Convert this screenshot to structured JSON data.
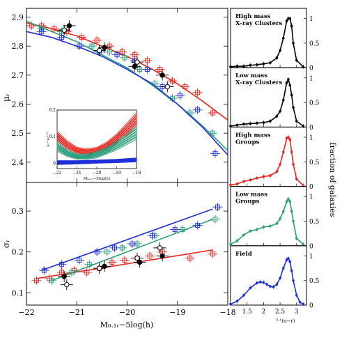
{
  "figure": {
    "colors": {
      "red": "#e8251e",
      "green": "#2a9d7a",
      "blue": "#1f2fd8",
      "black": "#000000"
    },
    "left_xlabel": "M₀.₁ᵣ−5log(h)",
    "right_xlabel": "⁰·¹(u−r)",
    "right_ylabel": "fraction of galaxies",
    "inset_ylabel": "μᵣ−μᵣᶠᶦᵉˡᵈ",
    "inset_xlabel": "M₀.₁ᵣ−5log(h)"
  },
  "chart_data": [
    {
      "type": "line",
      "id": "mu",
      "ylabel": "μᵣ",
      "xlim": [
        -22,
        -18
      ],
      "ylim": [
        2.33,
        2.93
      ],
      "yticks": [
        2.4,
        2.5,
        2.6,
        2.7,
        2.8,
        2.9
      ],
      "xticks": [
        -22,
        -21,
        -20,
        -19,
        -18
      ],
      "grid": false,
      "series": [
        {
          "color": "red",
          "curve": [
            [
              -22,
              2.88
            ],
            [
              -21.5,
              2.86
            ],
            [
              -21,
              2.835
            ],
            [
              -20.5,
              2.8
            ],
            [
              -20,
              2.765
            ],
            [
              -19.5,
              2.72
            ],
            [
              -19,
              2.67
            ],
            [
              -18.5,
              2.61
            ],
            [
              -18,
              2.545
            ]
          ],
          "points": [
            [
              -21.9,
              2.87
            ],
            [
              -21.7,
              2.87
            ],
            [
              -21.45,
              2.86
            ],
            [
              -21.2,
              2.85
            ],
            [
              -20.9,
              2.83
            ],
            [
              -20.6,
              2.82
            ],
            [
              -20.35,
              2.8
            ],
            [
              -20.1,
              2.78
            ],
            [
              -19.85,
              2.77
            ],
            [
              -19.6,
              2.75
            ],
            [
              -19.35,
              2.72
            ],
            [
              -19.1,
              2.68
            ],
            [
              -18.85,
              2.66
            ],
            [
              -18.6,
              2.64
            ],
            [
              -18.3,
              2.57
            ]
          ]
        },
        {
          "color": "green",
          "curve": [
            [
              -22,
              2.885
            ],
            [
              -21.5,
              2.85
            ],
            [
              -21,
              2.815
            ],
            [
              -20.5,
              2.77
            ],
            [
              -20,
              2.725
            ],
            [
              -19.5,
              2.665
            ],
            [
              -19,
              2.6
            ],
            [
              -18.5,
              2.525
            ],
            [
              -18,
              2.44
            ]
          ],
          "points": [
            [
              -21.7,
              2.86
            ],
            [
              -21.3,
              2.85
            ],
            [
              -20.7,
              2.8
            ],
            [
              -20.35,
              2.78
            ],
            [
              -20.05,
              2.76
            ],
            [
              -19.75,
              2.72
            ],
            [
              -19.45,
              2.67
            ],
            [
              -19.1,
              2.62
            ],
            [
              -18.75,
              2.57
            ],
            [
              -18.3,
              2.5
            ]
          ]
        },
        {
          "color": "blue",
          "curve": [
            [
              -22,
              2.85
            ],
            [
              -21.5,
              2.83
            ],
            [
              -21,
              2.8
            ],
            [
              -20.5,
              2.765
            ],
            [
              -20,
              2.72
            ],
            [
              -19.5,
              2.67
            ],
            [
              -19,
              2.6
            ],
            [
              -18.5,
              2.52
            ],
            [
              -18,
              2.425
            ]
          ],
          "points": [
            [
              -21.7,
              2.85
            ],
            [
              -21.3,
              2.83
            ],
            [
              -20.95,
              2.8
            ],
            [
              -20.55,
              2.78
            ],
            [
              -20.2,
              2.77
            ],
            [
              -19.85,
              2.75
            ],
            [
              -19.6,
              2.72
            ],
            [
              -19.3,
              2.66
            ],
            [
              -18.95,
              2.63
            ],
            [
              -18.6,
              2.58
            ],
            [
              -18.25,
              2.43
            ]
          ]
        },
        {
          "color": "black",
          "marker": "filled",
          "points": [
            [
              -21.15,
              2.87
            ],
            [
              -20.45,
              2.795
            ],
            [
              -19.85,
              2.73
            ],
            [
              -19.3,
              2.7
            ]
          ]
        },
        {
          "color": "black",
          "marker": "open",
          "points": [
            [
              -21.25,
              2.855
            ],
            [
              -20.55,
              2.785
            ],
            [
              -19.8,
              2.745
            ],
            [
              -19.2,
              2.66
            ]
          ]
        }
      ]
    },
    {
      "type": "line",
      "id": "sigma",
      "ylabel": "σᵣ",
      "xlim": [
        -22,
        -18
      ],
      "ylim": [
        0.07,
        0.37
      ],
      "yticks": [
        0.1,
        0.2,
        0.3
      ],
      "xticks": [
        -22,
        -21,
        -20,
        -19,
        -18
      ],
      "grid": false,
      "series": [
        {
          "color": "red",
          "curve": [
            [
              -21.8,
              0.135
            ],
            [
              -18.3,
              0.205
            ]
          ],
          "points": [
            [
              -21.8,
              0.13
            ],
            [
              -21.55,
              0.135
            ],
            [
              -21.3,
              0.15
            ],
            [
              -21.05,
              0.155
            ],
            [
              -20.8,
              0.15
            ],
            [
              -20.55,
              0.16
            ],
            [
              -20.3,
              0.175
            ],
            [
              -20.05,
              0.18
            ],
            [
              -19.8,
              0.185
            ],
            [
              -19.55,
              0.19
            ],
            [
              -19.3,
              0.2
            ],
            [
              -18.75,
              0.185
            ],
            [
              -18.3,
              0.195
            ]
          ]
        },
        {
          "color": "green",
          "curve": [
            [
              -21.5,
              0.13
            ],
            [
              -18.3,
              0.28
            ]
          ],
          "points": [
            [
              -21.5,
              0.13
            ],
            [
              -21.1,
              0.15
            ],
            [
              -20.75,
              0.17
            ],
            [
              -20.4,
              0.2
            ],
            [
              -20.1,
              0.21
            ],
            [
              -19.8,
              0.22
            ],
            [
              -19.45,
              0.24
            ],
            [
              -18.9,
              0.255
            ],
            [
              -18.25,
              0.28
            ]
          ]
        },
        {
          "color": "blue",
          "curve": [
            [
              -21.7,
              0.155
            ],
            [
              -18.3,
              0.305
            ]
          ],
          "points": [
            [
              -21.65,
              0.155
            ],
            [
              -21.3,
              0.17
            ],
            [
              -20.95,
              0.18
            ],
            [
              -20.6,
              0.2
            ],
            [
              -20.25,
              0.21
            ],
            [
              -19.9,
              0.22
            ],
            [
              -19.5,
              0.24
            ],
            [
              -19.05,
              0.255
            ],
            [
              -18.6,
              0.265
            ],
            [
              -18.2,
              0.31
            ]
          ]
        },
        {
          "color": "black",
          "marker": "filled",
          "points": [
            [
              -21.25,
              0.14
            ],
            [
              -20.45,
              0.165
            ],
            [
              -19.75,
              0.175
            ],
            [
              -19.3,
              0.19
            ]
          ]
        },
        {
          "color": "black",
          "marker": "open",
          "points": [
            [
              -21.2,
              0.12
            ],
            [
              -20.55,
              0.16
            ],
            [
              -19.8,
              0.185
            ],
            [
              -19.35,
              0.21
            ]
          ]
        }
      ]
    },
    {
      "type": "line",
      "id": "inset",
      "xlim": [
        -22,
        -18
      ],
      "ylim": [
        -0.02,
        0.2
      ],
      "yticks": [
        0,
        0.1,
        0.2
      ],
      "xticks": [
        -22,
        -21,
        -20,
        -19,
        -18
      ],
      "series": [
        {
          "color": "red",
          "band": [
            [
              -22,
              0.08,
              0.12
            ],
            [
              -21.5,
              0.05,
              0.085
            ],
            [
              -21,
              0.035,
              0.06
            ],
            [
              -20.5,
              0.03,
              0.055
            ],
            [
              -20,
              0.035,
              0.06
            ],
            [
              -19.5,
              0.05,
              0.08
            ],
            [
              -19,
              0.075,
              0.11
            ],
            [
              -18.5,
              0.105,
              0.15
            ],
            [
              -18,
              0.14,
              0.19
            ]
          ]
        },
        {
          "color": "green",
          "band": [
            [
              -22,
              0.045,
              0.08
            ],
            [
              -21.5,
              0.025,
              0.05
            ],
            [
              -21,
              0.015,
              0.035
            ],
            [
              -20.5,
              0.015,
              0.035
            ],
            [
              -20,
              0.02,
              0.045
            ],
            [
              -19.5,
              0.035,
              0.06
            ],
            [
              -19,
              0.05,
              0.085
            ],
            [
              -18.5,
              0.07,
              0.11
            ],
            [
              -18,
              0.09,
              0.14
            ]
          ]
        },
        {
          "color": "blue",
          "band": [
            [
              -22,
              -0.005,
              0.01
            ],
            [
              -21,
              -0.003,
              0.01
            ],
            [
              -20,
              0.0,
              0.012
            ],
            [
              -19,
              0.002,
              0.015
            ],
            [
              -18,
              0.005,
              0.02
            ]
          ]
        }
      ]
    },
    {
      "type": "line",
      "id": "hist",
      "xlim": [
        1.0,
        3.3
      ],
      "xticks": [
        1.5,
        2,
        2.5,
        3
      ],
      "panels": [
        {
          "label": "High mass\nX-ray Clusters",
          "color": "black",
          "marker": "filled",
          "x": [
            1.0,
            1.2,
            1.4,
            1.6,
            1.8,
            2.0,
            2.2,
            2.4,
            2.5,
            2.6,
            2.7,
            2.75,
            2.8,
            2.85,
            2.9,
            3.0,
            3.2
          ],
          "y": [
            0.02,
            0.03,
            0.03,
            0.05,
            0.06,
            0.08,
            0.1,
            0.2,
            0.35,
            0.6,
            0.95,
            1.0,
            1.0,
            0.85,
            0.5,
            0.15,
            0.02
          ]
        },
        {
          "label": "Low mass\nX-ray Clusters",
          "color": "black",
          "marker": "filled",
          "x": [
            1.0,
            1.2,
            1.4,
            1.6,
            1.8,
            2.0,
            2.2,
            2.4,
            2.5,
            2.6,
            2.7,
            2.75,
            2.8,
            2.85,
            2.9,
            3.0,
            3.2
          ],
          "y": [
            0.02,
            0.04,
            0.06,
            0.07,
            0.08,
            0.09,
            0.12,
            0.22,
            0.32,
            0.55,
            0.9,
            0.97,
            0.85,
            0.65,
            0.4,
            0.12,
            0.02
          ]
        },
        {
          "label": "High mass\nGroups",
          "color": "red",
          "marker": "filled",
          "x": [
            1.0,
            1.2,
            1.4,
            1.6,
            1.8,
            2.0,
            2.2,
            2.4,
            2.5,
            2.6,
            2.7,
            2.75,
            2.8,
            2.85,
            2.9,
            3.0,
            3.2
          ],
          "y": [
            0.03,
            0.05,
            0.1,
            0.13,
            0.17,
            0.2,
            0.22,
            0.3,
            0.45,
            0.7,
            0.98,
            1.0,
            0.95,
            0.7,
            0.45,
            0.15,
            0.02
          ]
        },
        {
          "label": "Low mass\nGroups",
          "color": "green",
          "marker": "filled",
          "x": [
            1.0,
            1.2,
            1.4,
            1.6,
            1.8,
            2.0,
            2.2,
            2.4,
            2.5,
            2.6,
            2.7,
            2.75,
            2.8,
            2.85,
            2.9,
            3.0,
            3.2
          ],
          "y": [
            0.03,
            0.1,
            0.22,
            0.3,
            0.33,
            0.38,
            0.4,
            0.45,
            0.55,
            0.7,
            0.9,
            0.95,
            0.9,
            0.7,
            0.5,
            0.15,
            0.03
          ]
        },
        {
          "label": "Field",
          "color": "blue",
          "marker": "filled",
          "x": [
            1.0,
            1.2,
            1.4,
            1.6,
            1.8,
            1.9,
            2.0,
            2.1,
            2.2,
            2.3,
            2.4,
            2.5,
            2.6,
            2.7,
            2.75,
            2.8,
            2.85,
            2.9,
            3.0,
            3.1,
            3.2
          ],
          "y": [
            0.02,
            0.08,
            0.2,
            0.35,
            0.45,
            0.47,
            0.46,
            0.42,
            0.38,
            0.37,
            0.42,
            0.55,
            0.75,
            0.92,
            0.95,
            0.88,
            0.7,
            0.5,
            0.2,
            0.06,
            0.02
          ]
        }
      ],
      "yticks": [
        0,
        0.5,
        1
      ]
    }
  ]
}
